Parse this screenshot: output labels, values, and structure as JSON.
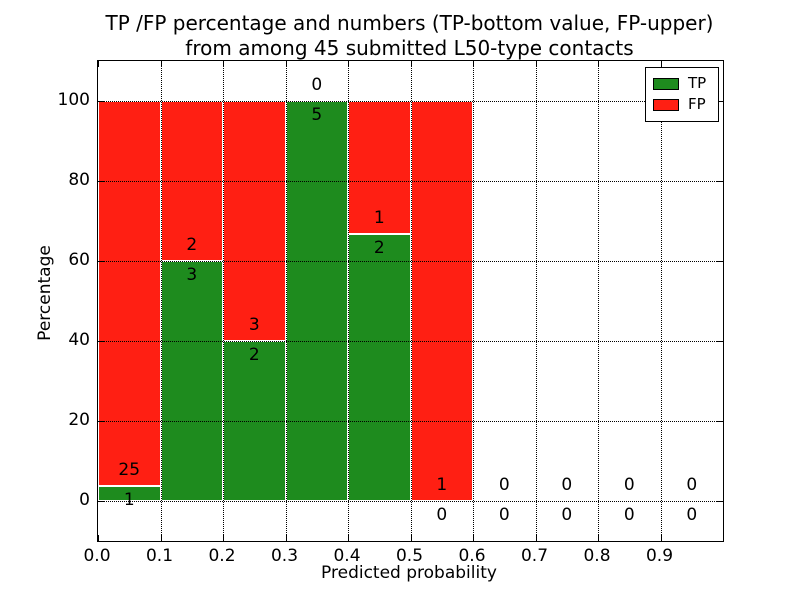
{
  "chart_data": {
    "type": "bar",
    "stacked": true,
    "title_line1": "TP /FP percentage and numbers (TP-bottom value, FP-upper)",
    "title_line2": "from among 45 submitted L50-type contacts",
    "xlabel": "Predicted probability",
    "ylabel": "Percentage",
    "xlim": [
      0.0,
      1.0
    ],
    "ylim": [
      -10,
      110
    ],
    "xtick_labels": [
      "0.0",
      "0.1",
      "0.2",
      "0.3",
      "0.4",
      "0.5",
      "0.6",
      "0.7",
      "0.8",
      "0.9"
    ],
    "xtick_values": [
      0.0,
      0.1,
      0.2,
      0.3,
      0.4,
      0.5,
      0.6,
      0.7,
      0.8,
      0.9
    ],
    "ytick_labels": [
      "0",
      "20",
      "40",
      "60",
      "80",
      "100"
    ],
    "ytick_values": [
      0,
      20,
      40,
      60,
      80,
      100
    ],
    "grid": true,
    "bin_width": 0.1,
    "bins": [
      {
        "x_range": [
          0.0,
          0.1
        ],
        "tp": 1,
        "fp": 25,
        "tp_pct": 3.85
      },
      {
        "x_range": [
          0.1,
          0.2
        ],
        "tp": 3,
        "fp": 2,
        "tp_pct": 60.0
      },
      {
        "x_range": [
          0.2,
          0.3
        ],
        "tp": 2,
        "fp": 3,
        "tp_pct": 40.0
      },
      {
        "x_range": [
          0.3,
          0.4
        ],
        "tp": 5,
        "fp": 0,
        "tp_pct": 100.0
      },
      {
        "x_range": [
          0.4,
          0.5
        ],
        "tp": 2,
        "fp": 1,
        "tp_pct": 66.67
      },
      {
        "x_range": [
          0.5,
          0.6
        ],
        "tp": 0,
        "fp": 1,
        "tp_pct": 0.0
      },
      {
        "x_range": [
          0.6,
          0.7
        ],
        "tp": 0,
        "fp": 0,
        "tp_pct": null
      },
      {
        "x_range": [
          0.7,
          0.8
        ],
        "tp": 0,
        "fp": 0,
        "tp_pct": null
      },
      {
        "x_range": [
          0.8,
          0.9
        ],
        "tp": 0,
        "fp": 0,
        "tp_pct": null
      },
      {
        "x_range": [
          0.9,
          1.0
        ],
        "tp": 0,
        "fp": 0,
        "tp_pct": null
      }
    ],
    "colors": {
      "tp": "#1e8b1e",
      "fp": "#ff1f13",
      "bar_edge": "#ffffff",
      "grid": "#000000",
      "text": "#000000"
    },
    "legend": {
      "position": "upper right",
      "items": [
        {
          "label": "TP",
          "color": "#1e8b1e"
        },
        {
          "label": "FP",
          "color": "#ff1f13"
        }
      ]
    }
  }
}
